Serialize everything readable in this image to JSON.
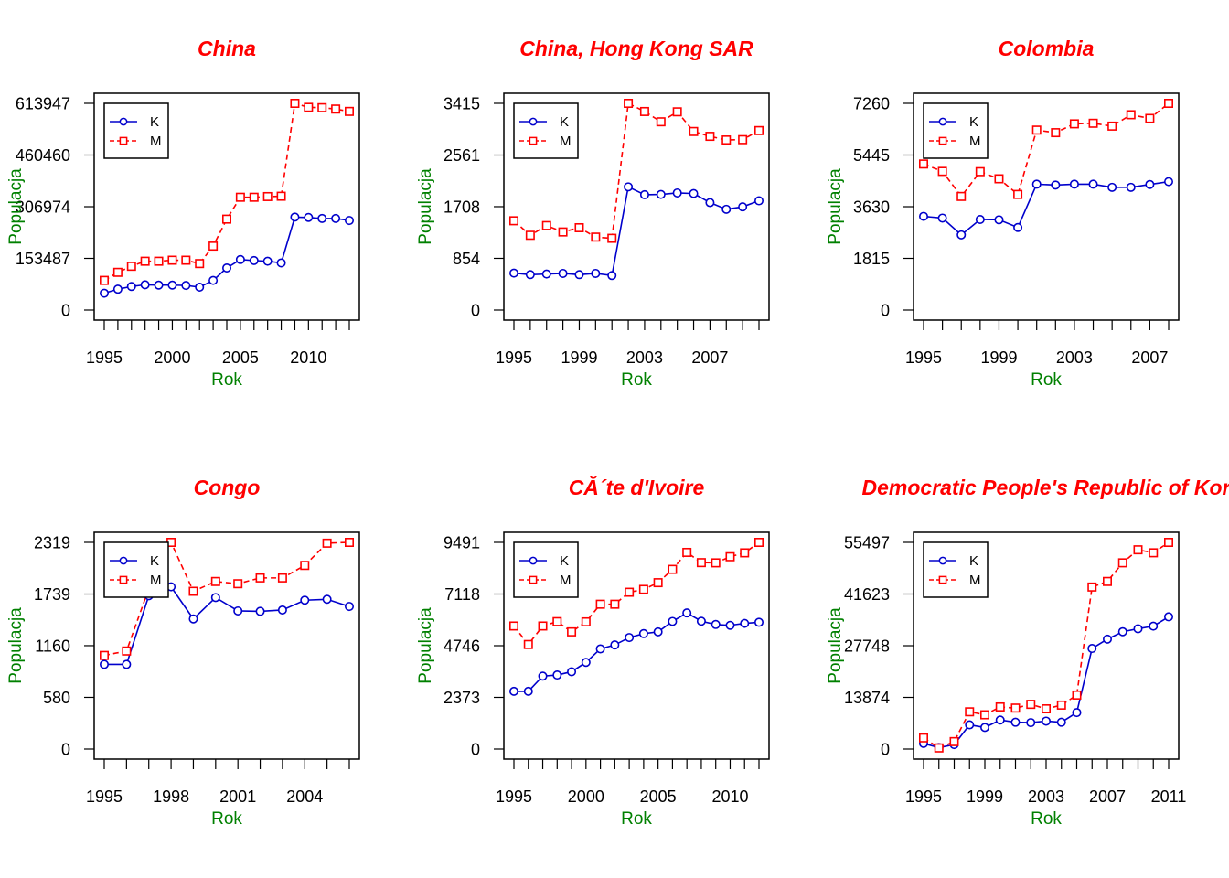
{
  "chart_data": [
    {
      "type": "line",
      "title": "China",
      "xlabel": "Rok",
      "ylabel": "Populacja",
      "xlim": [
        1995,
        2013
      ],
      "ylim": [
        0,
        613947
      ],
      "xticks": [
        1995,
        2000,
        2005,
        2010
      ],
      "yticks": [
        0,
        153487,
        306974,
        460460,
        613947
      ],
      "legend": "top-left",
      "series": [
        {
          "name": "K",
          "color": "#0000cc",
          "linestyle": "solid",
          "marker": "circle",
          "x": [
            1995,
            1996,
            1997,
            1998,
            1999,
            2000,
            2001,
            2002,
            2003,
            2004,
            2005,
            2006,
            2007,
            2008,
            2009,
            2010,
            2011,
            2012,
            2013
          ],
          "y": [
            50000,
            62000,
            70000,
            75000,
            74000,
            74000,
            73000,
            68000,
            88000,
            125000,
            150000,
            147000,
            145000,
            140000,
            276000,
            275000,
            272000,
            272000,
            266000
          ]
        },
        {
          "name": "M",
          "color": "#ff0000",
          "linestyle": "dashed",
          "marker": "square",
          "x": [
            1995,
            1996,
            1997,
            1998,
            1999,
            2000,
            2001,
            2002,
            2003,
            2004,
            2005,
            2006,
            2007,
            2008,
            2009,
            2010,
            2011,
            2012,
            2013
          ],
          "y": [
            88000,
            112000,
            130000,
            145000,
            145000,
            148000,
            148000,
            138000,
            190000,
            270000,
            335000,
            335000,
            337000,
            338000,
            613947,
            602000,
            601000,
            597000,
            590000
          ]
        }
      ]
    },
    {
      "type": "line",
      "title": "China, Hong Kong SAR",
      "xlabel": "Rok",
      "ylabel": "Populacja",
      "xlim": [
        1995,
        2010
      ],
      "ylim": [
        0,
        3415
      ],
      "xticks": [
        1995,
        1999,
        2003,
        2007
      ],
      "yticks": [
        0,
        854,
        1708,
        2561,
        3415
      ],
      "legend": "top-left",
      "series": [
        {
          "name": "K",
          "color": "#0000cc",
          "linestyle": "solid",
          "marker": "circle",
          "x": [
            1995,
            1996,
            1997,
            1998,
            1999,
            2000,
            2001,
            2002,
            2003,
            2004,
            2005,
            2006,
            2007,
            2008,
            2009,
            2010
          ],
          "y": [
            610,
            585,
            595,
            605,
            585,
            605,
            570,
            2035,
            1905,
            1910,
            1935,
            1925,
            1775,
            1665,
            1705,
            1805
          ]
        },
        {
          "name": "M",
          "color": "#ff0000",
          "linestyle": "dashed",
          "marker": "square",
          "x": [
            1995,
            1996,
            1997,
            1998,
            1999,
            2000,
            2001,
            2002,
            2003,
            2004,
            2005,
            2006,
            2007,
            2008,
            2009,
            2010
          ],
          "y": [
            1475,
            1235,
            1395,
            1290,
            1360,
            1205,
            1185,
            3415,
            3280,
            3110,
            3275,
            2950,
            2870,
            2810,
            2815,
            2965
          ]
        }
      ]
    },
    {
      "type": "line",
      "title": "Colombia",
      "xlabel": "Rok",
      "ylabel": "Populacja",
      "xlim": [
        1995,
        2008
      ],
      "ylim": [
        0,
        7260
      ],
      "xticks": [
        1995,
        1999,
        2003,
        2007
      ],
      "yticks": [
        0,
        1815,
        3630,
        5445,
        7260
      ],
      "legend": "top-left",
      "series": [
        {
          "name": "K",
          "color": "#0000cc",
          "linestyle": "solid",
          "marker": "circle",
          "x": [
            1995,
            1996,
            1997,
            1998,
            1999,
            2000,
            2001,
            2002,
            2003,
            2004,
            2005,
            2006,
            2007,
            2008
          ],
          "y": [
            3290,
            3230,
            2640,
            3180,
            3170,
            2900,
            4420,
            4390,
            4420,
            4420,
            4310,
            4310,
            4410,
            4510
          ]
        },
        {
          "name": "M",
          "color": "#ff0000",
          "linestyle": "dashed",
          "marker": "square",
          "x": [
            1995,
            1996,
            1997,
            1998,
            1999,
            2000,
            2001,
            2002,
            2003,
            2004,
            2005,
            2006,
            2007,
            2008
          ],
          "y": [
            5130,
            4870,
            3990,
            4860,
            4610,
            4060,
            6320,
            6230,
            6540,
            6560,
            6460,
            6860,
            6730,
            7260
          ]
        }
      ]
    },
    {
      "type": "line",
      "title": "Congo",
      "xlabel": "Rok",
      "ylabel": "Populacja",
      "xlim": [
        1995,
        2006
      ],
      "ylim": [
        0,
        2319
      ],
      "xticks": [
        1995,
        1998,
        2001,
        2004
      ],
      "yticks": [
        0,
        580,
        1160,
        1739,
        2319
      ],
      "legend": "top-left",
      "series": [
        {
          "name": "K",
          "color": "#0000cc",
          "linestyle": "solid",
          "marker": "circle",
          "x": [
            1995,
            1996,
            1997,
            1998,
            1999,
            2000,
            2001,
            2002,
            2003,
            2004,
            2005,
            2006
          ],
          "y": [
            950,
            950,
            1720,
            1820,
            1460,
            1700,
            1550,
            1545,
            1560,
            1670,
            1680,
            1600
          ]
        },
        {
          "name": "M",
          "color": "#ff0000",
          "linestyle": "dashed",
          "marker": "square",
          "x": [
            1995,
            1996,
            1997,
            1998,
            1999,
            2000,
            2001,
            2002,
            2003,
            2004,
            2005,
            2006
          ],
          "y": [
            1050,
            1100,
            1800,
            2319,
            1770,
            1880,
            1855,
            1920,
            1920,
            2060,
            2310,
            2319
          ]
        }
      ]
    },
    {
      "type": "line",
      "title": "CĂ´te d'Ivoire",
      "xlabel": "Rok",
      "ylabel": "Populacja",
      "xlim": [
        1995,
        2012
      ],
      "ylim": [
        0,
        9491
      ],
      "xticks": [
        1995,
        2000,
        2005,
        2010
      ],
      "yticks": [
        0,
        2373,
        4746,
        7118,
        9491
      ],
      "legend": "top-left",
      "series": [
        {
          "name": "K",
          "color": "#0000cc",
          "linestyle": "solid",
          "marker": "circle",
          "x": [
            1995,
            1996,
            1997,
            1998,
            1999,
            2000,
            2001,
            2002,
            2003,
            2004,
            2005,
            2006,
            2007,
            2008,
            2009,
            2010,
            2011,
            2012
          ],
          "y": [
            2650,
            2650,
            3350,
            3400,
            3550,
            3980,
            4600,
            4780,
            5120,
            5300,
            5380,
            5860,
            6250,
            5870,
            5720,
            5680,
            5770,
            5820
          ]
        },
        {
          "name": "M",
          "color": "#ff0000",
          "linestyle": "dashed",
          "marker": "square",
          "x": [
            1995,
            1996,
            1997,
            1998,
            1999,
            2000,
            2001,
            2002,
            2003,
            2004,
            2005,
            2006,
            2007,
            2008,
            2009,
            2010,
            2011,
            2012
          ],
          "y": [
            5650,
            4800,
            5650,
            5850,
            5380,
            5840,
            6650,
            6650,
            7200,
            7330,
            7640,
            8250,
            9030,
            8560,
            8550,
            8830,
            9010,
            9491
          ]
        }
      ]
    },
    {
      "type": "line",
      "title": "Democratic People's Republic of Kor",
      "xlabel": "Rok",
      "ylabel": "Populacja",
      "xlim": [
        1995,
        2011
      ],
      "ylim": [
        0,
        55497
      ],
      "xticks": [
        1995,
        1999,
        2003,
        2007,
        2011
      ],
      "yticks": [
        0,
        13874,
        27748,
        41623,
        55497
      ],
      "legend": "top-left",
      "series": [
        {
          "name": "K",
          "color": "#0000cc",
          "linestyle": "solid",
          "marker": "circle",
          "x": [
            1995,
            1996,
            1997,
            1998,
            1999,
            2000,
            2001,
            2002,
            2003,
            2004,
            2005,
            2006,
            2007,
            2008,
            2009,
            2010,
            2011
          ],
          "y": [
            1500,
            400,
            1200,
            6500,
            5800,
            7800,
            7200,
            7100,
            7500,
            7200,
            9800,
            27000,
            29500,
            31500,
            32300,
            33000,
            35500
          ]
        },
        {
          "name": "M",
          "color": "#ff0000",
          "linestyle": "dashed",
          "marker": "square",
          "x": [
            1995,
            1996,
            1997,
            1998,
            1999,
            2000,
            2001,
            2002,
            2003,
            2004,
            2005,
            2006,
            2007,
            2008,
            2009,
            2010,
            2011
          ],
          "y": [
            3000,
            300,
            2000,
            10000,
            9200,
            11300,
            11000,
            12000,
            10800,
            11800,
            14500,
            43500,
            45000,
            50000,
            53500,
            52700,
            55497
          ]
        }
      ]
    }
  ]
}
